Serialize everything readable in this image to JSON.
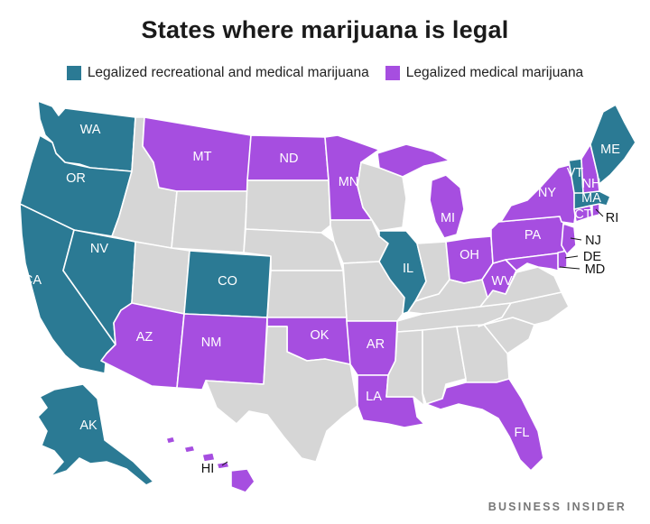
{
  "title": "States where marijuana is legal",
  "legend": {
    "recreational": "Legalized recreational and medical marijuana",
    "medical": "Legalized medical marijuana"
  },
  "colors": {
    "recreational": "#2b7a94",
    "medical": "#a64ee0",
    "none": "#d6d6d6",
    "border": "#ffffff"
  },
  "labels": {
    "WA": "WA",
    "OR": "OR",
    "CA": "CA",
    "NV": "NV",
    "CO": "CO",
    "AK": "AK",
    "IL": "IL",
    "MA": "MA",
    "VT": "VT",
    "ME": "ME",
    "MT": "MT",
    "ND": "ND",
    "MN": "MN",
    "MI": "MI",
    "NY": "NY",
    "NH": "NH",
    "CT": "CT",
    "RI": "RI",
    "PA": "PA",
    "OH": "OH",
    "WV": "WV",
    "NJ": "NJ",
    "DE": "DE",
    "MD": "MD",
    "AZ": "AZ",
    "NM": "NM",
    "OK": "OK",
    "AR": "AR",
    "LA": "LA",
    "FL": "FL",
    "HI": "HI"
  },
  "status": {
    "recreational": [
      "WA",
      "OR",
      "CA",
      "NV",
      "CO",
      "AK",
      "IL",
      "MA",
      "VT",
      "ME"
    ],
    "medical": [
      "MT",
      "ND",
      "MN",
      "MI",
      "NY",
      "NH",
      "CT",
      "RI",
      "PA",
      "OH",
      "WV",
      "NJ",
      "DE",
      "MD",
      "AZ",
      "NM",
      "OK",
      "AR",
      "LA",
      "FL",
      "HI"
    ]
  },
  "source": "BUSINESS INSIDER"
}
